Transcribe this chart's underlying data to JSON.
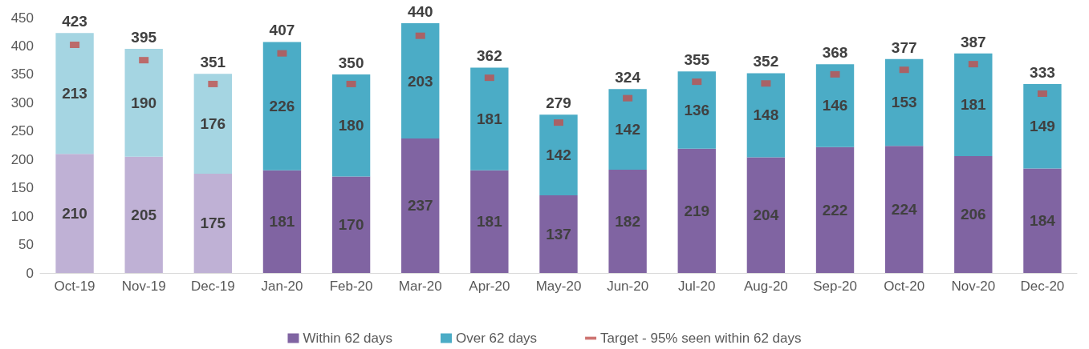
{
  "chart_data": {
    "type": "bar",
    "stacked": true,
    "categories": [
      "Oct-19",
      "Nov-19",
      "Dec-19",
      "Jan-20",
      "Feb-20",
      "Mar-20",
      "Apr-20",
      "May-20",
      "Jun-20",
      "Jul-20",
      "Aug-20",
      "Sep-20",
      "Oct-20",
      "Nov-20",
      "Dec-20"
    ],
    "series": [
      {
        "name": "Within 62 days",
        "color": "#8064a2",
        "colors": [
          "#bfb1d5",
          "#bfb1d5",
          "#bfb1d5",
          "#8064a2",
          "#8064a2",
          "#8064a2",
          "#8064a2",
          "#8064a2",
          "#8064a2",
          "#8064a2",
          "#8064a2",
          "#8064a2",
          "#8064a2",
          "#8064a2",
          "#8064a2"
        ],
        "values": [
          210,
          205,
          175,
          181,
          170,
          237,
          181,
          137,
          182,
          219,
          204,
          222,
          224,
          206,
          184
        ],
        "value_labels": [
          "210",
          "205",
          "175",
          "181",
          "170",
          "237",
          "181",
          "137",
          "182",
          "219",
          "204",
          "222",
          "224",
          "206",
          "184"
        ]
      },
      {
        "name": "Over 62 days",
        "color": "#4bacc6",
        "colors": [
          "#a5d5e2",
          "#a5d5e2",
          "#a5d5e2",
          "#4bacc6",
          "#4bacc6",
          "#4bacc6",
          "#4bacc6",
          "#4bacc6",
          "#4bacc6",
          "#4bacc6",
          "#4bacc6",
          "#4bacc6",
          "#4bacc6",
          "#4bacc6",
          "#4bacc6"
        ],
        "values": [
          213,
          190,
          176,
          226,
          180,
          203,
          181,
          142,
          142,
          136,
          148,
          146,
          153,
          181,
          149
        ],
        "value_labels": [
          "213",
          "190",
          "176",
          "226",
          "180",
          "203",
          "181",
          "142",
          "142",
          "136",
          "148",
          "146",
          "153",
          "181",
          "149"
        ]
      },
      {
        "name": "Target - 95% seen within 62 days",
        "type": "scatter",
        "marker": "square",
        "color": "#c0504d",
        "values": [
          402,
          375,
          333,
          387,
          333,
          418,
          344,
          265,
          308,
          337,
          334,
          350,
          358,
          368,
          316
        ]
      }
    ],
    "totals": [
      "423",
      "395",
      "351",
      "407",
      "350",
      "440",
      "362",
      "279",
      "324",
      "355",
      "352",
      "368",
      "377",
      "387",
      "333"
    ],
    "ylim": [
      0,
      450
    ],
    "yticks": [
      0,
      50,
      100,
      150,
      200,
      250,
      300,
      350,
      400,
      450
    ],
    "grid": false,
    "legend": "bottom"
  }
}
